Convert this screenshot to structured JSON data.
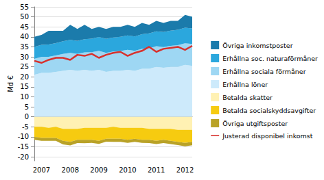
{
  "chart_data": {
    "type": "area",
    "stacked": true,
    "grid": true,
    "legend": "right",
    "y_label": "Md €",
    "ylim": [
      -22,
      55
    ],
    "yticks": [
      -20,
      -15,
      -10,
      -5,
      0,
      5,
      10,
      15,
      20,
      25,
      30,
      35,
      40,
      45,
      50,
      55
    ],
    "categories": [
      null,
      "2007",
      null,
      null,
      null,
      "2008",
      null,
      null,
      null,
      "2009",
      null,
      null,
      null,
      "2010",
      null,
      null,
      null,
      "2011",
      null,
      null,
      null,
      "2012",
      null
    ],
    "series": [
      {
        "name": "Övriga inkomstposter",
        "type": "area",
        "color": "#1b7bab",
        "values": [
          5,
          5,
          6.8,
          6.1,
          5.2,
          7.5,
          6,
          7.2,
          4.9,
          5.1,
          5,
          5.3,
          5,
          5.3,
          4.8,
          5.7,
          4.3,
          5.2,
          4.6,
          4.9,
          4.5,
          6.4,
          5.8
        ]
      },
      {
        "name": "Erhållna soc. naturaförmåner",
        "type": "area",
        "color": "#2ba7dd",
        "values": [
          6,
          6,
          6.2,
          6.2,
          6.3,
          6.5,
          6.5,
          6.6,
          6.8,
          6.9,
          7,
          7,
          7.1,
          7.2,
          7.2,
          7.3,
          7.4,
          7.5,
          7.5,
          7.6,
          7.7,
          7.8,
          7.8
        ]
      },
      {
        "name": "Erhållna sociala förmåner",
        "type": "area",
        "color": "#9ed7f3",
        "values": [
          8,
          8,
          8,
          8.2,
          8.5,
          8.5,
          8.5,
          8.7,
          9.3,
          9.5,
          9.5,
          9.7,
          9.9,
          10,
          10,
          10,
          10.3,
          10.3,
          10.4,
          10.5,
          10.8,
          10.8,
          10.9
        ]
      },
      {
        "name": "Erhållna löner",
        "type": "area",
        "color": "#cdeafb",
        "values": [
          21,
          22,
          22,
          22.5,
          23,
          23.5,
          23,
          23.5,
          23,
          23.5,
          22.5,
          23,
          23,
          23.5,
          23,
          24,
          24,
          25,
          24.5,
          25,
          25,
          26,
          25.5
        ]
      },
      {
        "name": "Betalda skatter",
        "type": "area",
        "color": "#fff1b3",
        "values": [
          -5,
          -5,
          -5.5,
          -5,
          -6,
          -6,
          -6,
          -5.5,
          -5.5,
          -5.5,
          -5.5,
          -5,
          -5.5,
          -5.5,
          -5.5,
          -5.5,
          -6,
          -6,
          -6,
          -6,
          -6.5,
          -6.5,
          -6.5
        ]
      },
      {
        "name": "Betalda socialskyddsavgifter",
        "type": "area",
        "color": "#f6cb10",
        "values": [
          -5,
          -5.5,
          -5,
          -5.5,
          -6,
          -6.5,
          -5.5,
          -6,
          -6,
          -6.5,
          -5.5,
          -6,
          -5.5,
          -6,
          -5.5,
          -6,
          -5.5,
          -6,
          -5.5,
          -6,
          -6,
          -6.5,
          -6
        ]
      },
      {
        "name": "Övriga utgiftsposter",
        "type": "area",
        "color": "#b9a227",
        "values": [
          -1.5,
          -1.5,
          -1.5,
          -1.5,
          -1.8,
          -1.8,
          -1.6,
          -1.7,
          -1.5,
          -1.5,
          -1.4,
          -1.5,
          -1.5,
          -1.5,
          -1.5,
          -1.5,
          -1.6,
          -1.6,
          -1.6,
          -1.6,
          -1.6,
          -1.7,
          -1.7
        ]
      },
      {
        "name": "Justerad disponibel inkomst",
        "type": "line",
        "color": "#d8312c",
        "values": [
          28,
          27,
          28.5,
          29.5,
          29.5,
          28.5,
          31,
          30.5,
          31.5,
          29.5,
          31,
          32,
          32.5,
          30.5,
          32,
          33,
          35,
          32.5,
          34,
          34.5,
          35,
          33.5,
          35.5
        ]
      }
    ]
  }
}
